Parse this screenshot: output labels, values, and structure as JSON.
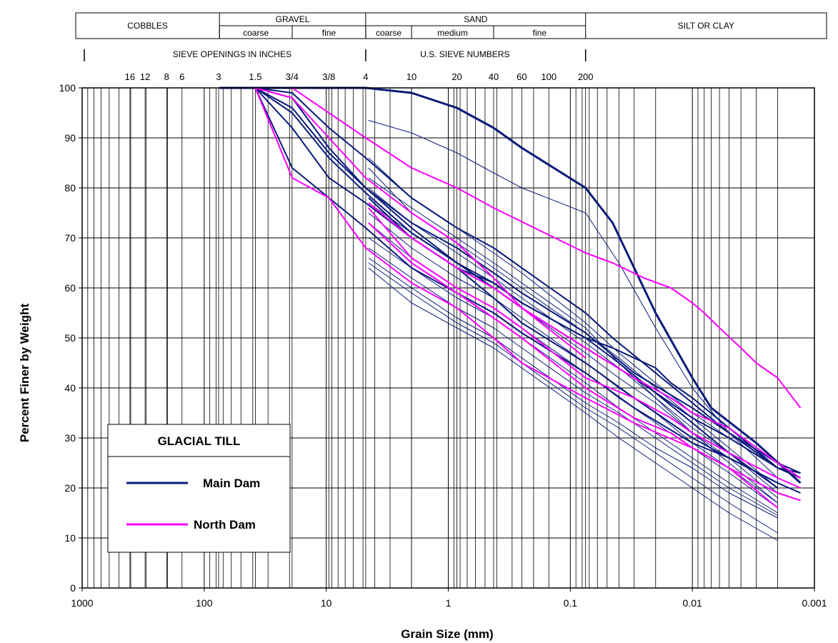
{
  "chart_data": {
    "type": "line",
    "title": "",
    "xlabel": "Grain Size (mm)",
    "ylabel": "Percent Finer by Weight",
    "x_scale": "log",
    "x_reversed": true,
    "xlim": [
      1000,
      0.001
    ],
    "ylim": [
      0,
      100
    ],
    "x_ticks": [
      {
        "value": 1000,
        "label": "1000"
      },
      {
        "value": 100,
        "label": "100"
      },
      {
        "value": 10,
        "label": "10"
      },
      {
        "value": 1,
        "label": "1"
      },
      {
        "value": 0.1,
        "label": "0.1"
      },
      {
        "value": 0.01,
        "label": "0.01"
      },
      {
        "value": 0.001,
        "label": "0.001"
      }
    ],
    "y_ticks": [
      {
        "value": 0,
        "label": "0"
      },
      {
        "value": 10,
        "label": "10"
      },
      {
        "value": 20,
        "label": "20"
      },
      {
        "value": 30,
        "label": "30"
      },
      {
        "value": 40,
        "label": "40"
      },
      {
        "value": 50,
        "label": "50"
      },
      {
        "value": 60,
        "label": "60"
      },
      {
        "value": 70,
        "label": "70"
      },
      {
        "value": 80,
        "label": "80"
      },
      {
        "value": 90,
        "label": "90"
      },
      {
        "value": 100,
        "label": "100"
      }
    ],
    "grid": true,
    "soil_classes": {
      "groups": [
        {
          "label": "COBBLES",
          "from": 1000,
          "to": 75
        },
        {
          "label": "GRAVEL",
          "from": 75,
          "to": 4.75
        },
        {
          "label": "SAND",
          "from": 4.75,
          "to": 0.075
        },
        {
          "label": "SILT OR CLAY",
          "from": 0.075,
          "to": 0.001
        }
      ],
      "subgroups": [
        {
          "label": "coarse",
          "from": 75,
          "to": 19
        },
        {
          "label": "fine",
          "from": 19,
          "to": 4.75
        },
        {
          "label": "coarse",
          "from": 4.75,
          "to": 2
        },
        {
          "label": "medium",
          "from": 2,
          "to": 0.425
        },
        {
          "label": "fine",
          "from": 0.425,
          "to": 0.075
        }
      ]
    },
    "sieve_label_inches": "SIEVE OPENINGS IN INCHES",
    "sieve_label_numbers": "U.S. SIEVE NUMBERS",
    "sieve_dividers": [
      1000,
      4.75,
      0.075
    ],
    "sieve_marks": [
      {
        "label": "16",
        "size": 406
      },
      {
        "label": "12",
        "size": 305
      },
      {
        "label": "8",
        "size": 203
      },
      {
        "label": "6",
        "size": 152
      },
      {
        "label": "3",
        "size": 76.2
      },
      {
        "label": "1.5",
        "size": 38.1
      },
      {
        "label": "3/4",
        "size": 19.05
      },
      {
        "label": "3/8",
        "size": 9.525
      },
      {
        "label": "4",
        "size": 4.75
      },
      {
        "label": "10",
        "size": 2.0
      },
      {
        "label": "20",
        "size": 0.85
      },
      {
        "label": "40",
        "size": 0.425
      },
      {
        "label": "60",
        "size": 0.25
      },
      {
        "label": "100",
        "size": 0.15
      },
      {
        "label": "200",
        "size": 0.075
      }
    ],
    "legend": {
      "title": "GLACIAL TILL",
      "position": "bottom-left",
      "entries": [
        {
          "name": "Main Dam",
          "color": "#0a1a7a"
        },
        {
          "name": "North Dam",
          "color": "#ff00ff"
        }
      ]
    },
    "series": [
      {
        "name": "Main Dam",
        "color": "#0a1a7a",
        "width": 3,
        "x": [
          75,
          38.1,
          19,
          9.5,
          4.75,
          2,
          0.85,
          0.425,
          0.25,
          0.075,
          0.045,
          0.03,
          0.02,
          0.01,
          0.007,
          0.003,
          0.0013
        ],
        "y": [
          100,
          100,
          100,
          100,
          100,
          99,
          96,
          92,
          88,
          80,
          73,
          64,
          55,
          42,
          36,
          29,
          21
        ]
      },
      {
        "name": "Main Dam",
        "color": "#0a1a7a",
        "width": 2,
        "x": [
          38.1,
          19,
          9.5,
          4.75,
          2,
          0.85,
          0.425,
          0.25,
          0.075,
          0.045,
          0.02,
          0.01,
          0.005,
          0.002,
          0.0013
        ],
        "y": [
          100,
          99,
          92,
          86,
          78,
          72,
          68,
          64,
          55,
          50,
          43,
          37,
          31,
          24,
          23
        ]
      },
      {
        "name": "Main Dam",
        "color": "#0a1a7a",
        "width": 2,
        "x": [
          38.1,
          19,
          9.5,
          4.75,
          2,
          0.85,
          0.425,
          0.25,
          0.075,
          0.045,
          0.02,
          0.015,
          0.01,
          0.005,
          0.002,
          0.0013
        ],
        "y": [
          100,
          98,
          88,
          80,
          72,
          65,
          61,
          57,
          50,
          48,
          44,
          41,
          38,
          32,
          24,
          22
        ]
      },
      {
        "name": "Main Dam",
        "color": "#0a1a7a",
        "width": 2,
        "x": [
          38.1,
          19,
          9.5,
          4.75,
          2,
          0.85,
          0.425,
          0.25,
          0.075,
          0.03,
          0.01,
          0.005,
          0.002,
          0.0013
        ],
        "y": [
          100,
          95,
          86,
          79,
          71,
          65,
          60,
          56,
          48,
          42,
          34,
          30,
          24,
          22
        ]
      },
      {
        "name": "Main Dam",
        "color": "#0a1a7a",
        "width": 2,
        "x": [
          38.1,
          19,
          9.5,
          4.75,
          2,
          0.85,
          0.425,
          0.25,
          0.075,
          0.03,
          0.01,
          0.005,
          0.002,
          0.0013
        ],
        "y": [
          100,
          96,
          87,
          80,
          73,
          68,
          63,
          59,
          51,
          43,
          36,
          31,
          25,
          23
        ]
      },
      {
        "name": "Main Dam",
        "color": "#0a1a7a",
        "width": 2,
        "x": [
          38.1,
          19,
          9.5,
          4.75,
          2,
          0.85,
          0.425,
          0.25,
          0.075,
          0.03,
          0.01,
          0.005,
          0.002,
          0.0013
        ],
        "y": [
          100,
          84,
          78,
          72,
          64,
          59,
          55,
          51,
          43,
          36,
          29,
          26,
          21,
          19
        ]
      },
      {
        "name": "Main Dam",
        "color": "#0a1a7a",
        "width": 2,
        "x": [
          38.1,
          19,
          9.5,
          4.75,
          2,
          0.85,
          0.425,
          0.25,
          0.075,
          0.03,
          0.01,
          0.005,
          0.002
        ],
        "y": [
          100,
          92,
          82,
          77,
          70,
          64,
          58,
          53,
          45,
          38,
          30,
          26,
          21
        ]
      },
      {
        "name": "Main Dam",
        "color": "#0a1a7a",
        "width": 1,
        "x": [
          4.5,
          2,
          0.85,
          0.425,
          0.25,
          0.075,
          0.04,
          0.02,
          0.01,
          0.005,
          0.002
        ],
        "y": [
          93.5,
          91,
          87,
          83,
          80,
          75,
          65,
          52,
          40,
          31,
          22
        ]
      },
      {
        "name": "Main Dam",
        "color": "#0a1a7a",
        "width": 1,
        "x": [
          4.5,
          2,
          0.85,
          0.425,
          0.25,
          0.075,
          0.04,
          0.02,
          0.01,
          0.005,
          0.002
        ],
        "y": [
          86,
          78,
          72,
          67,
          63,
          53,
          47,
          41,
          35,
          30,
          24
        ]
      },
      {
        "name": "Main Dam",
        "color": "#0a1a7a",
        "width": 1,
        "x": [
          4.5,
          2,
          0.85,
          0.425,
          0.25,
          0.075,
          0.04,
          0.02,
          0.01,
          0.005,
          0.002
        ],
        "y": [
          84,
          75,
          69,
          64,
          60,
          51,
          46,
          40,
          34,
          28,
          20
        ]
      },
      {
        "name": "Main Dam",
        "color": "#0a1a7a",
        "width": 1,
        "x": [
          4.5,
          2,
          0.85,
          0.425,
          0.25,
          0.075,
          0.04,
          0.02,
          0.01,
          0.005,
          0.002
        ],
        "y": [
          80,
          73,
          67,
          62,
          58,
          49,
          44,
          38,
          32,
          27,
          19
        ]
      },
      {
        "name": "Main Dam",
        "color": "#0a1a7a",
        "width": 1,
        "x": [
          4.5,
          2,
          0.85,
          0.425,
          0.25,
          0.075,
          0.04,
          0.02,
          0.01,
          0.005,
          0.002
        ],
        "y": [
          77,
          71,
          65,
          60,
          56,
          47,
          42,
          37,
          31,
          26,
          18
        ]
      },
      {
        "name": "Main Dam",
        "color": "#0a1a7a",
        "width": 1,
        "x": [
          4.5,
          2,
          0.85,
          0.425,
          0.25,
          0.075,
          0.04,
          0.02,
          0.01,
          0.005,
          0.002
        ],
        "y": [
          75,
          68,
          62,
          58,
          54,
          45,
          40,
          35,
          29,
          24,
          17
        ]
      },
      {
        "name": "Main Dam",
        "color": "#0a1a7a",
        "width": 1,
        "x": [
          4.5,
          2,
          0.85,
          0.425,
          0.25,
          0.075,
          0.04,
          0.02,
          0.01,
          0.005,
          0.002
        ],
        "y": [
          73,
          66,
          60,
          56,
          52,
          43,
          38,
          33,
          28,
          23,
          16
        ]
      },
      {
        "name": "Main Dam",
        "color": "#0a1a7a",
        "width": 1,
        "x": [
          4.5,
          2,
          0.85,
          0.425,
          0.25,
          0.075,
          0.04,
          0.02,
          0.01,
          0.005,
          0.002
        ],
        "y": [
          70,
          64,
          58,
          54,
          50,
          41,
          36,
          31,
          26,
          21,
          15
        ]
      },
      {
        "name": "Main Dam",
        "color": "#0a1a7a",
        "width": 1,
        "x": [
          4.5,
          2,
          0.85,
          0.425,
          0.25,
          0.075,
          0.04,
          0.02,
          0.01,
          0.005,
          0.002
        ],
        "y": [
          68,
          62,
          56,
          52,
          48,
          39,
          35,
          30,
          25,
          20,
          14.5
        ]
      },
      {
        "name": "Main Dam",
        "color": "#0a1a7a",
        "width": 1,
        "x": [
          4.5,
          2,
          0.85,
          0.425,
          0.25,
          0.075,
          0.04,
          0.02,
          0.01,
          0.005,
          0.002
        ],
        "y": [
          66,
          60,
          54,
          50,
          46,
          37,
          33,
          28,
          24,
          19,
          14
        ]
      },
      {
        "name": "Main Dam",
        "color": "#0a1a7a",
        "width": 1,
        "x": [
          4.5,
          2,
          0.85,
          0.425,
          0.25,
          0.075,
          0.04,
          0.02,
          0.01,
          0.005,
          0.002
        ],
        "y": [
          65,
          59,
          53,
          49,
          45,
          36,
          32,
          27,
          22,
          17,
          11
        ]
      },
      {
        "name": "Main Dam",
        "color": "#0a1a7a",
        "width": 1,
        "x": [
          4.5,
          2,
          0.85,
          0.425,
          0.25,
          0.075,
          0.04,
          0.02,
          0.01,
          0.005,
          0.002
        ],
        "y": [
          64,
          57,
          52,
          48,
          44,
          35,
          30,
          25,
          20,
          15,
          9.5
        ]
      },
      {
        "name": "Main Dam",
        "color": "#0a1a7a",
        "width": 1,
        "x": [
          4.5,
          2,
          0.85,
          0.425,
          0.25,
          0.075,
          0.04,
          0.02,
          0.01,
          0.005,
          0.002
        ],
        "y": [
          82,
          76,
          70,
          65,
          61,
          52,
          45,
          38,
          31,
          25,
          17
        ]
      },
      {
        "name": "Main Dam",
        "color": "#0a1a7a",
        "width": 2,
        "x": [
          4.5,
          2,
          0.85,
          0.425,
          0.25,
          0.075,
          0.04,
          0.02,
          0.01,
          0.005,
          0.002
        ],
        "y": [
          78,
          70,
          64,
          61,
          57,
          50,
          45,
          39,
          33,
          27,
          20
        ]
      },
      {
        "name": "North Dam",
        "color": "#ff00ff",
        "width": 2,
        "x": [
          19,
          9.5,
          4.75,
          2,
          0.85,
          0.425,
          0.075,
          0.045,
          0.025,
          0.015,
          0.01,
          0.008,
          0.006,
          0.004,
          0.003,
          0.002,
          0.0013
        ],
        "y": [
          100,
          95,
          90,
          84,
          80,
          76,
          67,
          65,
          62,
          60,
          57,
          55,
          52,
          48,
          45,
          42,
          36
        ]
      },
      {
        "name": "North Dam",
        "color": "#ff00ff",
        "width": 2,
        "x": [
          38.1,
          19,
          9.5,
          4.75,
          2,
          0.85,
          0.425,
          0.25,
          0.075
        ],
        "y": [
          100,
          98,
          90,
          82,
          75,
          69,
          62,
          56,
          46
        ]
      },
      {
        "name": "North Dam",
        "color": "#ff00ff",
        "width": 2,
        "x": [
          4.5,
          2,
          0.85,
          0.425,
          0.25,
          0.075,
          0.03,
          0.015,
          0.01,
          0.005,
          0.002,
          0.0013
        ],
        "y": [
          77,
          70,
          64,
          60,
          56,
          48,
          42,
          38,
          35,
          32,
          25,
          22
        ]
      },
      {
        "name": "North Dam",
        "color": "#ff00ff",
        "width": 2,
        "x": [
          4.5,
          2,
          0.85,
          0.425,
          0.25,
          0.075,
          0.03,
          0.015,
          0.01,
          0.005,
          0.002,
          0.0013
        ],
        "y": [
          76,
          66,
          60,
          56,
          52,
          42,
          38,
          34,
          31,
          27,
          22,
          20
        ]
      },
      {
        "name": "North Dam",
        "color": "#ff00ff",
        "width": 2,
        "x": [
          38.1,
          19,
          9.5,
          4.75,
          2,
          0.85,
          0.425,
          0.25,
          0.075,
          0.03,
          0.01,
          0.005,
          0.002,
          0.0013
        ],
        "y": [
          100,
          82,
          78,
          68,
          61,
          56,
          50,
          45,
          38,
          33,
          28,
          24,
          19,
          17.5
        ]
      },
      {
        "name": "North Dam",
        "color": "#ff00ff",
        "width": 2,
        "x": [
          4.5,
          2,
          0.85,
          0.425,
          0.25,
          0.075,
          0.03,
          0.015,
          0.01,
          0.005,
          0.002
        ],
        "y": [
          73,
          65,
          59,
          54,
          50,
          40,
          34,
          31,
          28,
          24,
          16
        ]
      }
    ]
  }
}
